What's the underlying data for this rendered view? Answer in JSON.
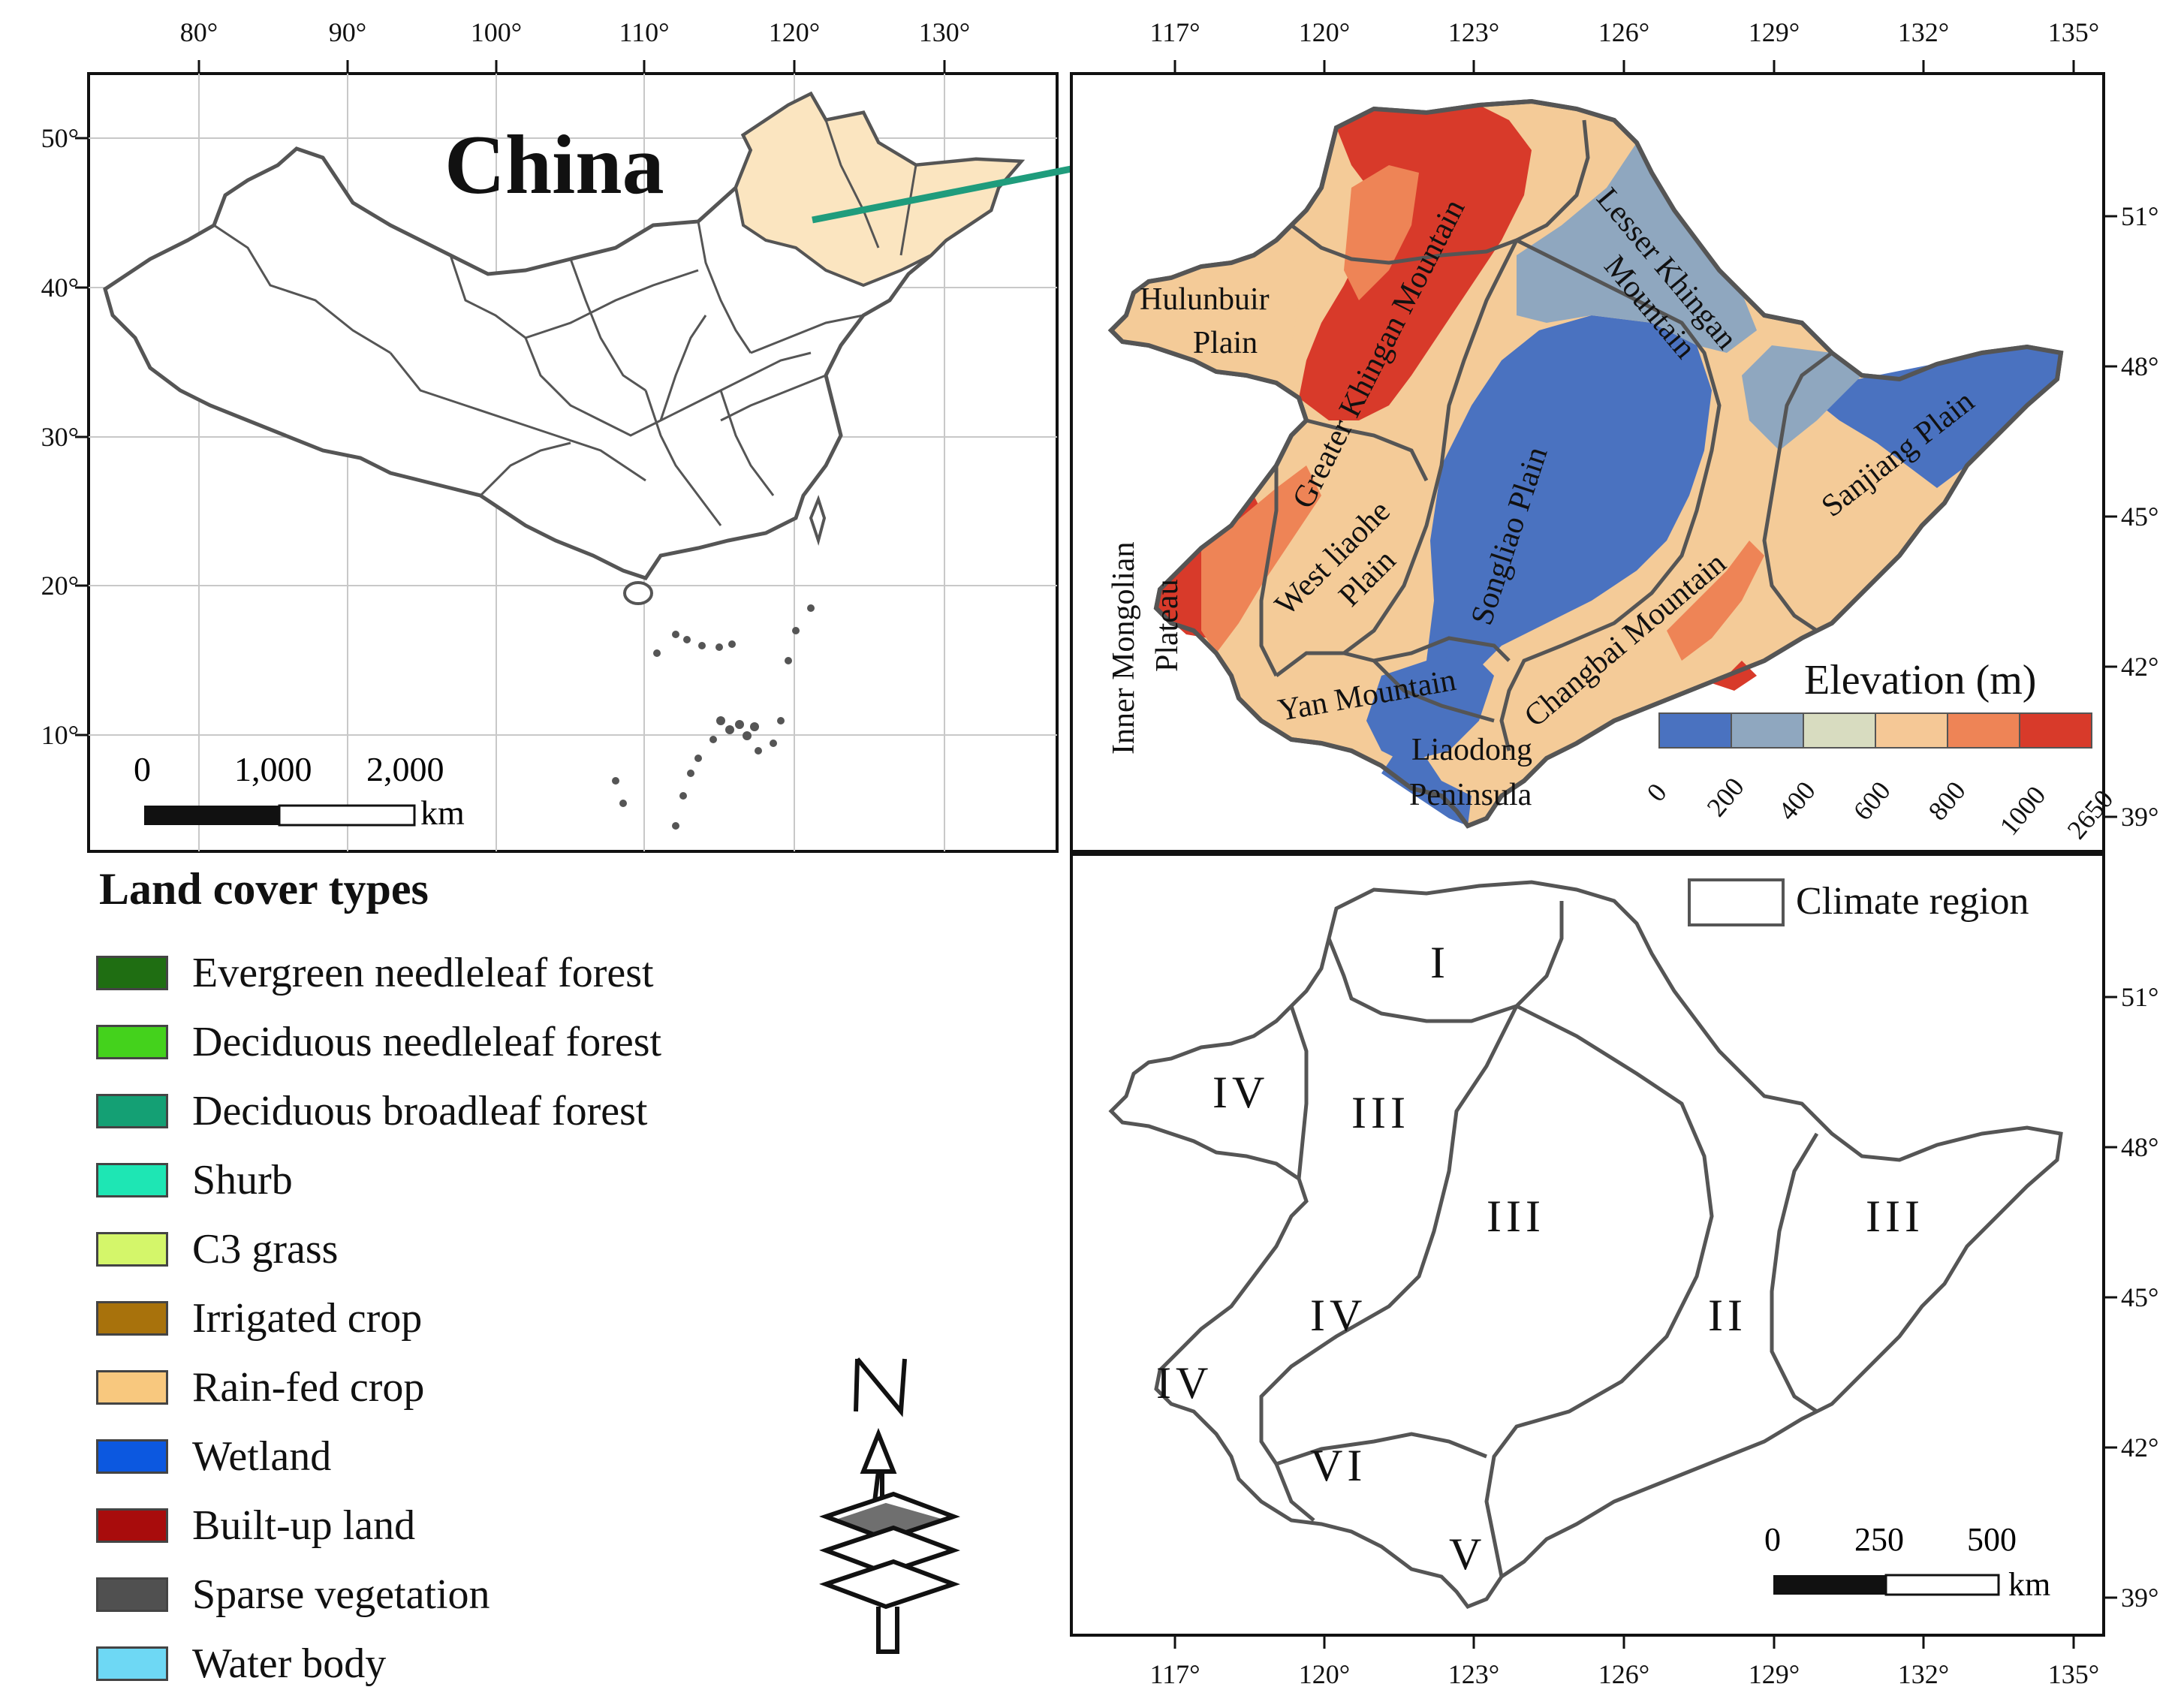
{
  "inset": {
    "title": "China",
    "lon_ticks": [
      "80°",
      "90°",
      "100°",
      "110°",
      "120°",
      "130°"
    ],
    "lat_ticks": [
      "50°",
      "40°",
      "30°",
      "20°",
      "10°"
    ],
    "scale_labels": [
      "0",
      "1,000",
      "2,000"
    ],
    "scale_unit": "km"
  },
  "elevation_map": {
    "lon_ticks": [
      "117°",
      "120°",
      "123°",
      "126°",
      "129°",
      "132°",
      "135°"
    ],
    "lat_ticks": [
      "51°",
      "48°",
      "45°",
      "42°",
      "39°"
    ],
    "region_labels": {
      "hulunbuir": "Hulunbuir",
      "plain": "Plain",
      "greater_khingan": "Greater Khingan Mountain",
      "lesser_khingan": "Lesser Khingan",
      "lesser_khingan_2": "Mountain",
      "west_liaohe": "West liaohe",
      "west_liaohe_2": "Plain",
      "songliao": "Songliao Plain",
      "sanjiang": "Sanjiang Plain",
      "changbai": "Changbai Mountain",
      "yan": "Yan Mountain",
      "liaodong": "Liaodong",
      "peninsula": "Peninsula",
      "inner_mongolian": "Inner Mongolian",
      "plateau": "Plateau"
    },
    "legend_title": "Elevation (m)",
    "legend_ticks": [
      "0",
      "200",
      "400",
      "600",
      "800",
      "1000",
      "2650"
    ],
    "legend_colors": [
      "#4a72c0",
      "#8fa7bf",
      "#d8dcc0",
      "#f5c896",
      "#ee8456",
      "#d83a2a"
    ]
  },
  "landcover_map": {
    "lon_ticks": [
      "117°",
      "120°",
      "123°",
      "126°",
      "129°",
      "132°",
      "135°"
    ],
    "lat_ticks": [
      "51°",
      "48°",
      "45°",
      "42°",
      "39°"
    ],
    "climate_legend": "Climate region",
    "regions": [
      "I",
      "III",
      "IV",
      "III",
      "III",
      "IV",
      "IV",
      "II",
      "VI",
      "V"
    ],
    "scale_labels": [
      "0",
      "250",
      "500"
    ],
    "scale_unit": "km"
  },
  "land_cover_legend": {
    "title": "Land cover types",
    "items": [
      {
        "label": "Evergreen needleleaf forest",
        "color": "#1f6e12"
      },
      {
        "label": "Deciduous needleleaf forest",
        "color": "#44d21c"
      },
      {
        "label": "Deciduous broadleaf forest",
        "color": "#14a074"
      },
      {
        "label": "Shurb",
        "color": "#1ee6b4"
      },
      {
        "label": "C3 grass",
        "color": "#d4f66a"
      },
      {
        "label": "Irrigated crop",
        "color": "#a8720c"
      },
      {
        "label": "Rain-fed crop",
        "color": "#f8c87e"
      },
      {
        "label": "Wetland",
        "color": "#0c58e0"
      },
      {
        "label": "Built-up land",
        "color": "#a80c0c"
      },
      {
        "label": "Sparse vegetation",
        "color": "#505050"
      },
      {
        "label": "Water body",
        "color": "#6ed8f4"
      }
    ]
  }
}
